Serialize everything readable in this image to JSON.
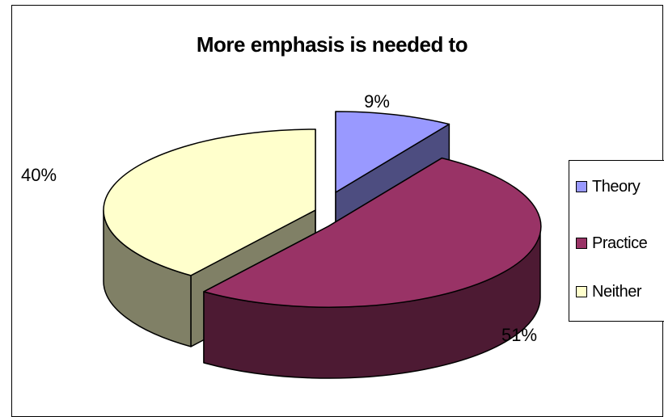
{
  "chart_data": {
    "type": "pie",
    "title": "More emphasis is needed to",
    "categories": [
      "Theory",
      "Practice",
      "Neither"
    ],
    "values": [
      9,
      51,
      40
    ],
    "labels": [
      "9%",
      "51%",
      "40%"
    ],
    "colors": {
      "Theory": {
        "top": "#9999FF",
        "side": "#4D4D80"
      },
      "Practice": {
        "top": "#993366",
        "side": "#4D1A33"
      },
      "Neither": {
        "top": "#FFFFCC",
        "side": "#808066"
      }
    },
    "legend_position": "right",
    "style": "3d-exploded"
  }
}
